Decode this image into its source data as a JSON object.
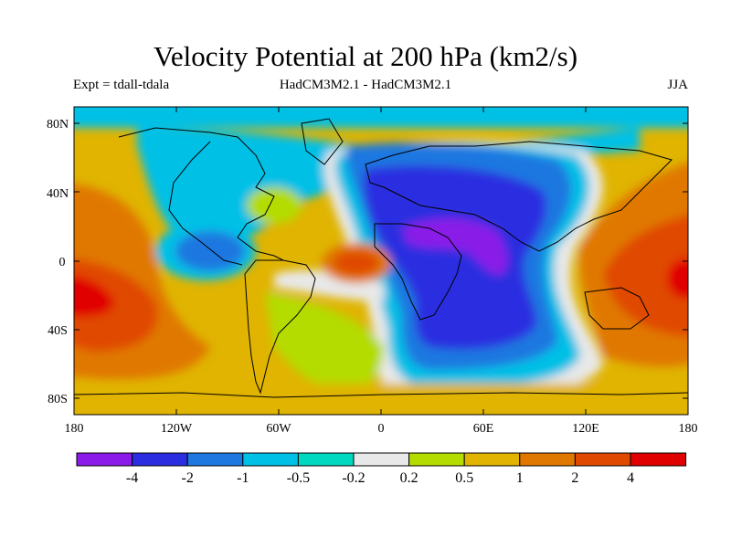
{
  "title": "Velocity Potential at 200 hPa (km2/s)",
  "subtitle_left": "Expt = tdall-tdala",
  "subtitle_center": "HadCM3M2.1 - HadCM3M2.1",
  "subtitle_right": "JJA",
  "axes": {
    "x_ticks": [
      "180",
      "120W",
      "60W",
      "0",
      "60E",
      "120E",
      "180"
    ],
    "y_ticks": [
      "80N",
      "40N",
      "0",
      "40S",
      "80S"
    ]
  },
  "colorbar": {
    "labels": [
      "-4",
      "-2",
      "-1",
      "-0.5",
      "-0.2",
      "0.2",
      "0.5",
      "1",
      "2",
      "4"
    ],
    "colors": [
      "#8a1be8",
      "#2a2ee0",
      "#1f78e0",
      "#00c0e6",
      "#00d8c0",
      "#e8e8e8",
      "#b4dc00",
      "#e0b400",
      "#e07800",
      "#e04a00",
      "#e00000"
    ]
  },
  "chart_data": {
    "type": "heatmap",
    "projection": "cylindrical-equidistant",
    "lon_range": [
      -180,
      180
    ],
    "lat_range": [
      -90,
      90
    ],
    "levels": [
      -4,
      -2,
      -1,
      -0.5,
      -0.2,
      0.2,
      0.5,
      1,
      2,
      4
    ],
    "features": [
      {
        "name": "strong negative over Arabia/NE Africa",
        "level": "< -4"
      },
      {
        "name": "negative over Africa / Indian Ocean",
        "level": "-4 to -2"
      },
      {
        "name": "positive over tropical Pacific",
        "level": "2 to 4"
      },
      {
        "name": "positive over tropical Atlantic off W Africa",
        "level": "2 to 4"
      }
    ]
  }
}
